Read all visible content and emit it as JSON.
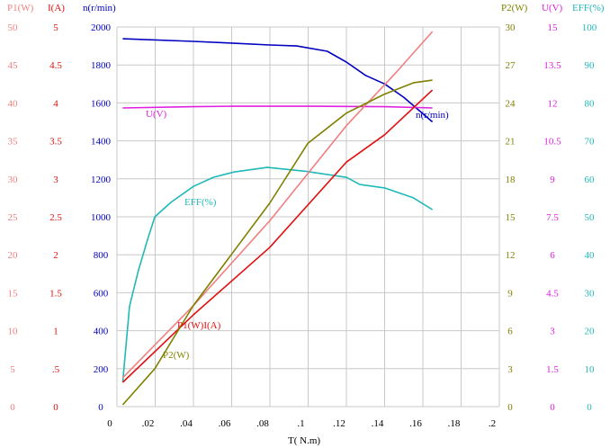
{
  "chart_data": {
    "type": "line",
    "xlabel": "T( N.m)",
    "x_ticks": [
      "0",
      ".02",
      ".04",
      ".06",
      ".08",
      ".1",
      ".12",
      ".14",
      ".16",
      ".18",
      ".2"
    ],
    "xlim": [
      0,
      0.2
    ],
    "grid": true,
    "axes": [
      {
        "key": "P1",
        "label": "P1(W)",
        "side": "left",
        "range": [
          0,
          50
        ],
        "ticks": [
          "0",
          "5",
          "10",
          "15",
          "20",
          "25",
          "30",
          "35",
          "40",
          "45",
          "50"
        ],
        "color": "#f08080"
      },
      {
        "key": "I",
        "label": "I(A)",
        "side": "left",
        "range": [
          0,
          5
        ],
        "ticks": [
          "0",
          ".5",
          "1",
          "1.5",
          "2",
          "2.5",
          "3",
          "3.5",
          "4",
          "4.5",
          "5"
        ],
        "color": "#e01010"
      },
      {
        "key": "n",
        "label": "n(r/min)",
        "side": "left",
        "range": [
          0,
          2000
        ],
        "ticks": [
          "0",
          "200",
          "400",
          "600",
          "800",
          "1000",
          "1200",
          "1400",
          "1600",
          "1800",
          "2000"
        ],
        "color": "#0000c0"
      },
      {
        "key": "P2",
        "label": "P2(W)",
        "side": "right",
        "range": [
          0,
          30
        ],
        "ticks": [
          "0",
          "3",
          "6",
          "9",
          "12",
          "15",
          "18",
          "21",
          "24",
          "27",
          "30"
        ],
        "color": "#808000"
      },
      {
        "key": "U",
        "label": "U(V)",
        "side": "right",
        "range": [
          0,
          15
        ],
        "ticks": [
          "0",
          "1.5",
          "3",
          "4.5",
          "6",
          "7.5",
          "9",
          "10.5",
          "12",
          "13.5",
          "15"
        ],
        "color": "#e020e0"
      },
      {
        "key": "EFF",
        "label": "EFF(%)",
        "side": "right",
        "range": [
          0,
          100
        ],
        "ticks": [
          "0",
          "10",
          "20",
          "30",
          "40",
          "50",
          "60",
          "70",
          "80",
          "90",
          "100"
        ],
        "color": "#20b8b8"
      }
    ],
    "series": [
      {
        "name": "n(r/min)",
        "axis": "n",
        "color": "#0000c0",
        "points": [
          [
            0.003,
            1938
          ],
          [
            0.04,
            1924
          ],
          [
            0.06,
            1915
          ],
          [
            0.08,
            1905
          ],
          [
            0.094,
            1900
          ],
          [
            0.11,
            1872
          ],
          [
            0.12,
            1815
          ],
          [
            0.13,
            1745
          ],
          [
            0.14,
            1700
          ],
          [
            0.15,
            1630
          ],
          [
            0.165,
            1500
          ]
        ]
      },
      {
        "name": "U(V)",
        "axis": "U",
        "color": "#e020e0",
        "points": [
          [
            0.003,
            11.8
          ],
          [
            0.04,
            11.85
          ],
          [
            0.06,
            11.87
          ],
          [
            0.1,
            11.87
          ],
          [
            0.14,
            11.85
          ],
          [
            0.165,
            11.8
          ]
        ]
      },
      {
        "name": "EFF(%)",
        "axis": "EFF",
        "color": "#20b8b8",
        "points": [
          [
            0.003,
            6.4
          ],
          [
            0.0066,
            26.5
          ],
          [
            0.0113,
            36
          ],
          [
            0.016,
            44
          ],
          [
            0.0198,
            50
          ],
          [
            0.0282,
            53.8
          ],
          [
            0.04,
            58
          ],
          [
            0.0504,
            60.4
          ],
          [
            0.0612,
            61.8
          ],
          [
            0.0786,
            63
          ],
          [
            0.0988,
            62
          ],
          [
            0.12,
            60.4
          ],
          [
            0.127,
            58.5
          ],
          [
            0.14,
            57.6
          ],
          [
            0.155,
            55
          ],
          [
            0.165,
            51.9
          ]
        ]
      },
      {
        "name": "P1(W)",
        "axis": "P1",
        "color": "#f08080",
        "points": [
          [
            0.003,
            3.8
          ],
          [
            0.04,
            13.3
          ],
          [
            0.08,
            24.5
          ],
          [
            0.12,
            37
          ],
          [
            0.146,
            44
          ],
          [
            0.165,
            49.4
          ]
        ]
      },
      {
        "name": "I(A)",
        "axis": "I",
        "color": "#e01010",
        "points": [
          [
            0.003,
            0.32
          ],
          [
            0.04,
            1.21
          ],
          [
            0.08,
            2.1
          ],
          [
            0.12,
            3.22
          ],
          [
            0.14,
            3.58
          ],
          [
            0.165,
            4.17
          ]
        ]
      },
      {
        "name": "P2(W)",
        "axis": "P2",
        "color": "#808000",
        "points": [
          [
            0.003,
            0.14
          ],
          [
            0.0198,
            3.0
          ],
          [
            0.04,
            8
          ],
          [
            0.08,
            16.1
          ],
          [
            0.0998,
            20.8
          ],
          [
            0.12,
            23.2
          ],
          [
            0.14,
            24.7
          ],
          [
            0.1553,
            25.6
          ],
          [
            0.165,
            25.8
          ]
        ]
      }
    ],
    "annotations": [
      {
        "text": "n(r/min)",
        "color": "#0000c0"
      },
      {
        "text": "U(V)",
        "color": "#e020e0"
      },
      {
        "text": "EFF(%)",
        "color": "#20b8b8"
      },
      {
        "text": "P1(W)I(A)",
        "color": "#e01010"
      },
      {
        "text": "P2(W)",
        "color": "#808000"
      }
    ]
  }
}
